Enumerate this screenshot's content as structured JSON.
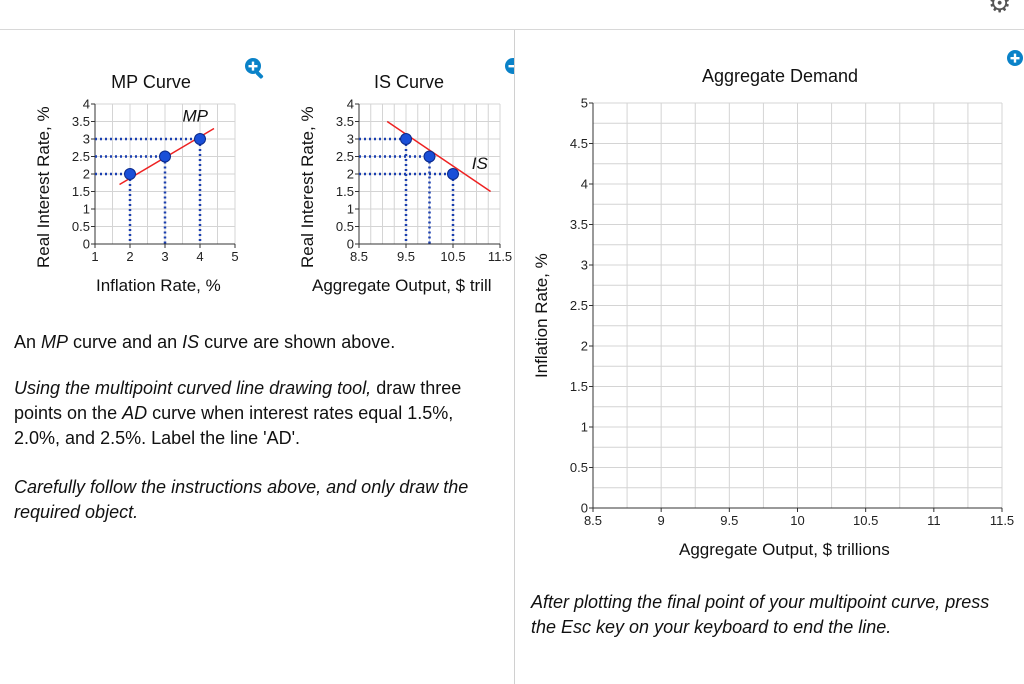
{
  "chart_data": [
    {
      "type": "scatter",
      "title": "MP Curve",
      "xlabel": "Inflation Rate, %",
      "ylabel": "Real Interest Rate, %",
      "xlim": [
        1,
        5
      ],
      "ylim": [
        0,
        4
      ],
      "xticks": [
        "1",
        "2",
        "3",
        "4",
        "5"
      ],
      "yticks": [
        "0",
        "0.5",
        "1",
        "1.5",
        "2",
        "2.5",
        "3",
        "3.5",
        "4"
      ],
      "line": {
        "label": "MP",
        "color": "#ee2222",
        "x": [
          1.7,
          4.4
        ],
        "y": [
          1.7,
          3.3
        ]
      },
      "points": [
        {
          "x": 2,
          "y": 2
        },
        {
          "x": 3,
          "y": 2.5
        },
        {
          "x": 4,
          "y": 3
        }
      ],
      "grid": true
    },
    {
      "type": "scatter",
      "title": "IS Curve",
      "xlabel": "Aggregate Output, $ trill",
      "ylabel": "Real Interest Rate, %",
      "xlim": [
        8.5,
        11.5
      ],
      "ylim": [
        0,
        4
      ],
      "xticks": [
        "8.5",
        "9.5",
        "10.5",
        "11.5"
      ],
      "yticks": [
        "0",
        "0.5",
        "1",
        "1.5",
        "2",
        "2.5",
        "3",
        "3.5",
        "4"
      ],
      "line": {
        "label": "IS",
        "color": "#ee2222",
        "x": [
          9.1,
          11.3
        ],
        "y": [
          3.5,
          1.5
        ]
      },
      "points": [
        {
          "x": 9.5,
          "y": 3
        },
        {
          "x": 10,
          "y": 2.5
        },
        {
          "x": 10.5,
          "y": 2
        }
      ],
      "grid": true
    },
    {
      "type": "scatter",
      "title": "Aggregate Demand",
      "xlabel": "Aggregate Output, $ trillions",
      "ylabel": "Inflation Rate, %",
      "xlim": [
        8.5,
        11.5
      ],
      "ylim": [
        0,
        5
      ],
      "xticks": [
        "8.5",
        "9",
        "9.5",
        "10",
        "10.5",
        "11",
        "11.5"
      ],
      "yticks": [
        "0",
        "0.5",
        "1",
        "1.5",
        "2",
        "2.5",
        "3",
        "3.5",
        "4",
        "4.5",
        "5"
      ],
      "points": [],
      "grid": true
    }
  ],
  "colors": {
    "line": "#ee2222",
    "point": "#1a4fd8",
    "zoom": "#0a82c8",
    "grid": "#d4d4d4"
  },
  "icons": {
    "zoom": "zoom-in-icon",
    "settings": "gear-icon"
  },
  "text": {
    "desc_pre": "An ",
    "desc_mp": "MP",
    "desc_mid": " curve and an ",
    "desc_is": "IS",
    "desc_post": " curve are shown above.",
    "instr_em": "Using the multipoint curved line drawing tool,",
    "instr_a": " draw three points on the ",
    "instr_ad": "AD",
    "instr_b": " curve when interest rates equal 1.5%, 2.0%, and 2.5%. Label the line 'AD'.",
    "careful": "Carefully follow the instructions above, and only draw the required object.",
    "after": "After plotting the final point of your multipoint curve, press the Esc key on your keyboard to end the line."
  }
}
